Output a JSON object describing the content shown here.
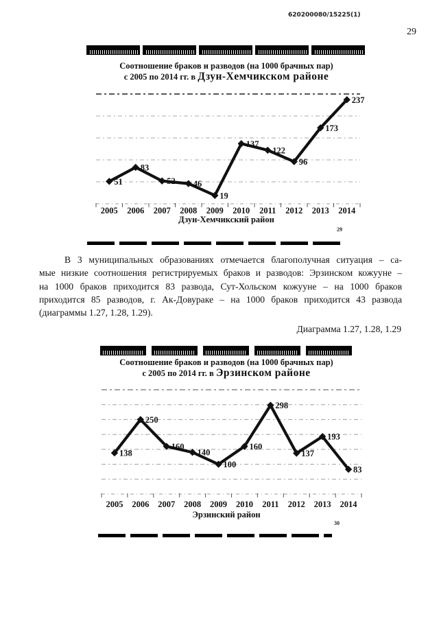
{
  "page": {
    "doc_number": "620200080/15225(1)",
    "page_number": "29"
  },
  "paragraph": {
    "lines": [
      "В 3 муниципальных образованиях отмечается благополучная ситуация – са-",
      "мые низкие соотношения регистрируемых браков и разводов: Эрзинском кожууне –",
      "на 1000 браков приходится 83 развода, Сут-Хольском кожууне – на 1000 браков",
      "приходится 85 разводов, г. Ак-Довураке – на 1000 браков приходится 43 развода",
      "(диаграммы 1.27, 1.28, 1.29)."
    ]
  },
  "diagram_caption": "Диаграмма 1.27, 1.28, 1.29",
  "chart_data": [
    {
      "type": "line",
      "title": "Соотношение браков и разводов (на 1000 брачных пар)",
      "subtitle_prefix": "с 2005 по 2014 гг.  в",
      "subtitle_region": "Дзун-Хемчикском районе",
      "categories": [
        "2005",
        "2006",
        "2007",
        "2008",
        "2009",
        "2010",
        "2011",
        "2012",
        "2013",
        "2014"
      ],
      "values": [
        51,
        83,
        52,
        46,
        19,
        137,
        122,
        96,
        173,
        237
      ],
      "xlabel": "Дзун-Хемчикский район",
      "ylabel": "",
      "ylim": [
        0,
        250
      ],
      "grid_step": 50,
      "grid": "horizontal-dashed",
      "legend": "none",
      "marker": "diamond",
      "line_color": "#111111",
      "page_note": "29"
    },
    {
      "type": "line",
      "title": "Соотношение браков и разводов (на 1000 брачных пар)",
      "subtitle_prefix": "с 2005 по 2014 гг.  в",
      "subtitle_region": "Эрзинском  районе",
      "categories": [
        "2005",
        "2006",
        "2007",
        "2008",
        "2009",
        "2010",
        "2011",
        "2012",
        "2013",
        "2014"
      ],
      "values": [
        138,
        250,
        160,
        140,
        100,
        160,
        298,
        137,
        193,
        83
      ],
      "xlabel": "Эрзинский район",
      "ylabel": "",
      "ylim": [
        0,
        350
      ],
      "grid_step": 50,
      "grid": "horizontal-dashed",
      "legend": "none",
      "marker": "diamond",
      "line_color": "#111111",
      "page_note": "30"
    }
  ]
}
